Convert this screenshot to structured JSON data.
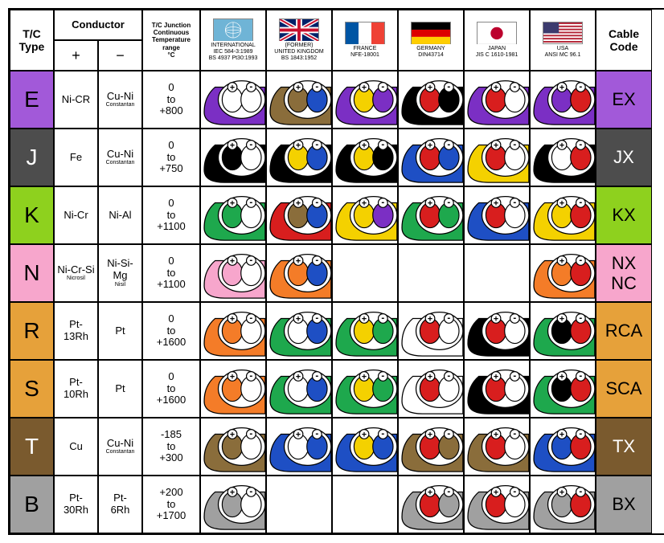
{
  "headers": {
    "tctype": "T/C\nType",
    "conductor": "Conductor",
    "plus": "+",
    "minus": "−",
    "junction": "T/C Junction\nContinuous\nTemperature\nrange\n°C",
    "cablecode": "Cable\nCode"
  },
  "countries": [
    {
      "name": "INTERNATIONAL",
      "spec": "IEC 584-3:1989\nBS 4937 Pt30:1993",
      "flag": "intl"
    },
    {
      "name": "(FORMER)\nUNITED KINGDOM",
      "spec": "BS 1843:1952",
      "flag": "uk"
    },
    {
      "name": "FRANCE",
      "spec": "NFE-18001",
      "flag": "fr"
    },
    {
      "name": "GERMANY",
      "spec": "DIN43714",
      "flag": "de"
    },
    {
      "name": "JAPAN",
      "spec": "JIS C 1610-1981",
      "flag": "jp"
    },
    {
      "name": "USA",
      "spec": "ANSI MC 96.1",
      "flag": "us"
    }
  ],
  "rows": [
    {
      "type": "E",
      "typeColor": "#a259d9",
      "typeText": "#000",
      "plus": "Ni-CR",
      "plusSub": "",
      "minus": "Cu-Ni",
      "minusSub": "Constantan",
      "temp": "0\nto\n+800",
      "code": "EX",
      "codeColor": "#a259d9",
      "cables": [
        {
          "sheath": "#7b2fc4",
          "pos": "#ffffff",
          "neg": "#ffffff"
        },
        {
          "sheath": "#8a6d3b",
          "pos": "#8a6d3b",
          "neg": "#1e4fc4"
        },
        {
          "sheath": "#7b2fc4",
          "pos": "#f4d100",
          "neg": "#7b2fc4"
        },
        {
          "sheath": "#000000",
          "pos": "#d81e1e",
          "neg": "#000000"
        },
        {
          "sheath": "#7b2fc4",
          "pos": "#d81e1e",
          "neg": "#ffffff"
        },
        {
          "sheath": "#7b2fc4",
          "pos": "#7b2fc4",
          "neg": "#d81e1e"
        }
      ]
    },
    {
      "type": "J",
      "typeColor": "#4d4d4d",
      "typeText": "#fff",
      "plus": "Fe",
      "plusSub": "",
      "minus": "Cu-Ni",
      "minusSub": "Constantan",
      "temp": "0\nto\n+750",
      "code": "JX",
      "codeColor": "#4d4d4d",
      "codeText": "#fff",
      "cables": [
        {
          "sheath": "#000000",
          "pos": "#000000",
          "neg": "#ffffff"
        },
        {
          "sheath": "#000000",
          "pos": "#f4d100",
          "neg": "#1e4fc4"
        },
        {
          "sheath": "#000000",
          "pos": "#f4d100",
          "neg": "#000000"
        },
        {
          "sheath": "#1e4fc4",
          "pos": "#d81e1e",
          "neg": "#1e4fc4"
        },
        {
          "sheath": "#f4d100",
          "pos": "#d81e1e",
          "neg": "#ffffff"
        },
        {
          "sheath": "#000000",
          "pos": "#ffffff",
          "neg": "#d81e1e"
        }
      ]
    },
    {
      "type": "K",
      "typeColor": "#8ed11e",
      "typeText": "#000",
      "plus": "Ni-Cr",
      "plusSub": "",
      "minus": "Ni-Al",
      "minusSub": "",
      "temp": "0\nto\n+1100",
      "code": "KX",
      "codeColor": "#8ed11e",
      "cables": [
        {
          "sheath": "#1ea84d",
          "pos": "#1ea84d",
          "neg": "#ffffff"
        },
        {
          "sheath": "#d81e1e",
          "pos": "#8a6d3b",
          "neg": "#1e4fc4"
        },
        {
          "sheath": "#f4d100",
          "pos": "#f4d100",
          "neg": "#7b2fc4"
        },
        {
          "sheath": "#1ea84d",
          "pos": "#d81e1e",
          "neg": "#1ea84d"
        },
        {
          "sheath": "#1e4fc4",
          "pos": "#d81e1e",
          "neg": "#ffffff"
        },
        {
          "sheath": "#f4d100",
          "pos": "#f4d100",
          "neg": "#d81e1e"
        }
      ]
    },
    {
      "type": "N",
      "typeColor": "#f7a6cc",
      "typeText": "#000",
      "plus": "Ni-Cr-Si",
      "plusSub": "Nicrosil",
      "minus": "Ni-Si-Mg",
      "minusSub": "Nisil",
      "temp": "0\nto\n+1100",
      "code": "NX\nNC",
      "codeColor": "#f7a6cc",
      "cables": [
        {
          "sheath": "#f7a6cc",
          "pos": "#f7a6cc",
          "neg": "#ffffff"
        },
        {
          "sheath": "#f47c28",
          "pos": "#f47c28",
          "neg": "#1e4fc4"
        },
        null,
        null,
        null,
        {
          "sheath": "#f47c28",
          "pos": "#f47c28",
          "neg": "#d81e1e"
        }
      ]
    },
    {
      "type": "R",
      "typeColor": "#e6a13a",
      "typeText": "#000",
      "plus": "Pt-\n13Rh",
      "plusSub": "",
      "minus": "Pt",
      "minusSub": "",
      "temp": "0\nto\n+1600",
      "code": "RCA",
      "codeColor": "#e6a13a",
      "cables": [
        {
          "sheath": "#f47c28",
          "pos": "#f47c28",
          "neg": "#ffffff"
        },
        {
          "sheath": "#1ea84d",
          "pos": "#ffffff",
          "neg": "#1e4fc4"
        },
        {
          "sheath": "#1ea84d",
          "pos": "#f4d100",
          "neg": "#1ea84d"
        },
        {
          "sheath": "#ffffff",
          "pos": "#d81e1e",
          "neg": "#ffffff"
        },
        {
          "sheath": "#000000",
          "pos": "#d81e1e",
          "neg": "#ffffff"
        },
        {
          "sheath": "#1ea84d",
          "pos": "#000000",
          "neg": "#d81e1e"
        }
      ]
    },
    {
      "type": "S",
      "typeColor": "#e6a13a",
      "typeText": "#000",
      "plus": "Pt-\n10Rh",
      "plusSub": "",
      "minus": "Pt",
      "minusSub": "",
      "temp": "0\nto\n+1600",
      "code": "SCA",
      "codeColor": "#e6a13a",
      "cables": [
        {
          "sheath": "#f47c28",
          "pos": "#f47c28",
          "neg": "#ffffff"
        },
        {
          "sheath": "#1ea84d",
          "pos": "#ffffff",
          "neg": "#1e4fc4"
        },
        {
          "sheath": "#1ea84d",
          "pos": "#f4d100",
          "neg": "#1ea84d"
        },
        {
          "sheath": "#ffffff",
          "pos": "#d81e1e",
          "neg": "#ffffff"
        },
        {
          "sheath": "#000000",
          "pos": "#d81e1e",
          "neg": "#ffffff"
        },
        {
          "sheath": "#1ea84d",
          "pos": "#000000",
          "neg": "#d81e1e"
        }
      ]
    },
    {
      "type": "T",
      "typeColor": "#7a5a2e",
      "typeText": "#fff",
      "plus": "Cu",
      "plusSub": "",
      "minus": "Cu-Ni",
      "minusSub": "Constantan",
      "temp": "-185\nto\n+300",
      "code": "TX",
      "codeColor": "#7a5a2e",
      "codeText": "#fff",
      "cables": [
        {
          "sheath": "#8a6d3b",
          "pos": "#8a6d3b",
          "neg": "#ffffff"
        },
        {
          "sheath": "#1e4fc4",
          "pos": "#ffffff",
          "neg": "#1e4fc4"
        },
        {
          "sheath": "#1e4fc4",
          "pos": "#f4d100",
          "neg": "#1e4fc4"
        },
        {
          "sheath": "#8a6d3b",
          "pos": "#d81e1e",
          "neg": "#8a6d3b"
        },
        {
          "sheath": "#8a6d3b",
          "pos": "#d81e1e",
          "neg": "#ffffff"
        },
        {
          "sheath": "#1e4fc4",
          "pos": "#1e4fc4",
          "neg": "#d81e1e"
        }
      ]
    },
    {
      "type": "B",
      "typeColor": "#a0a0a0",
      "typeText": "#000",
      "plus": "Pt-\n30Rh",
      "plusSub": "",
      "minus": "Pt-\n6Rh",
      "minusSub": "",
      "temp": "+200\nto\n+1700",
      "code": "BX",
      "codeColor": "#a0a0a0",
      "cables": [
        {
          "sheath": "#a0a0a0",
          "pos": "#a0a0a0",
          "neg": "#ffffff"
        },
        null,
        null,
        {
          "sheath": "#a0a0a0",
          "pos": "#d81e1e",
          "neg": "#a0a0a0"
        },
        {
          "sheath": "#a0a0a0",
          "pos": "#d81e1e",
          "neg": "#ffffff"
        },
        {
          "sheath": "#a0a0a0",
          "pos": "#a0a0a0",
          "neg": "#d81e1e"
        }
      ]
    }
  ]
}
